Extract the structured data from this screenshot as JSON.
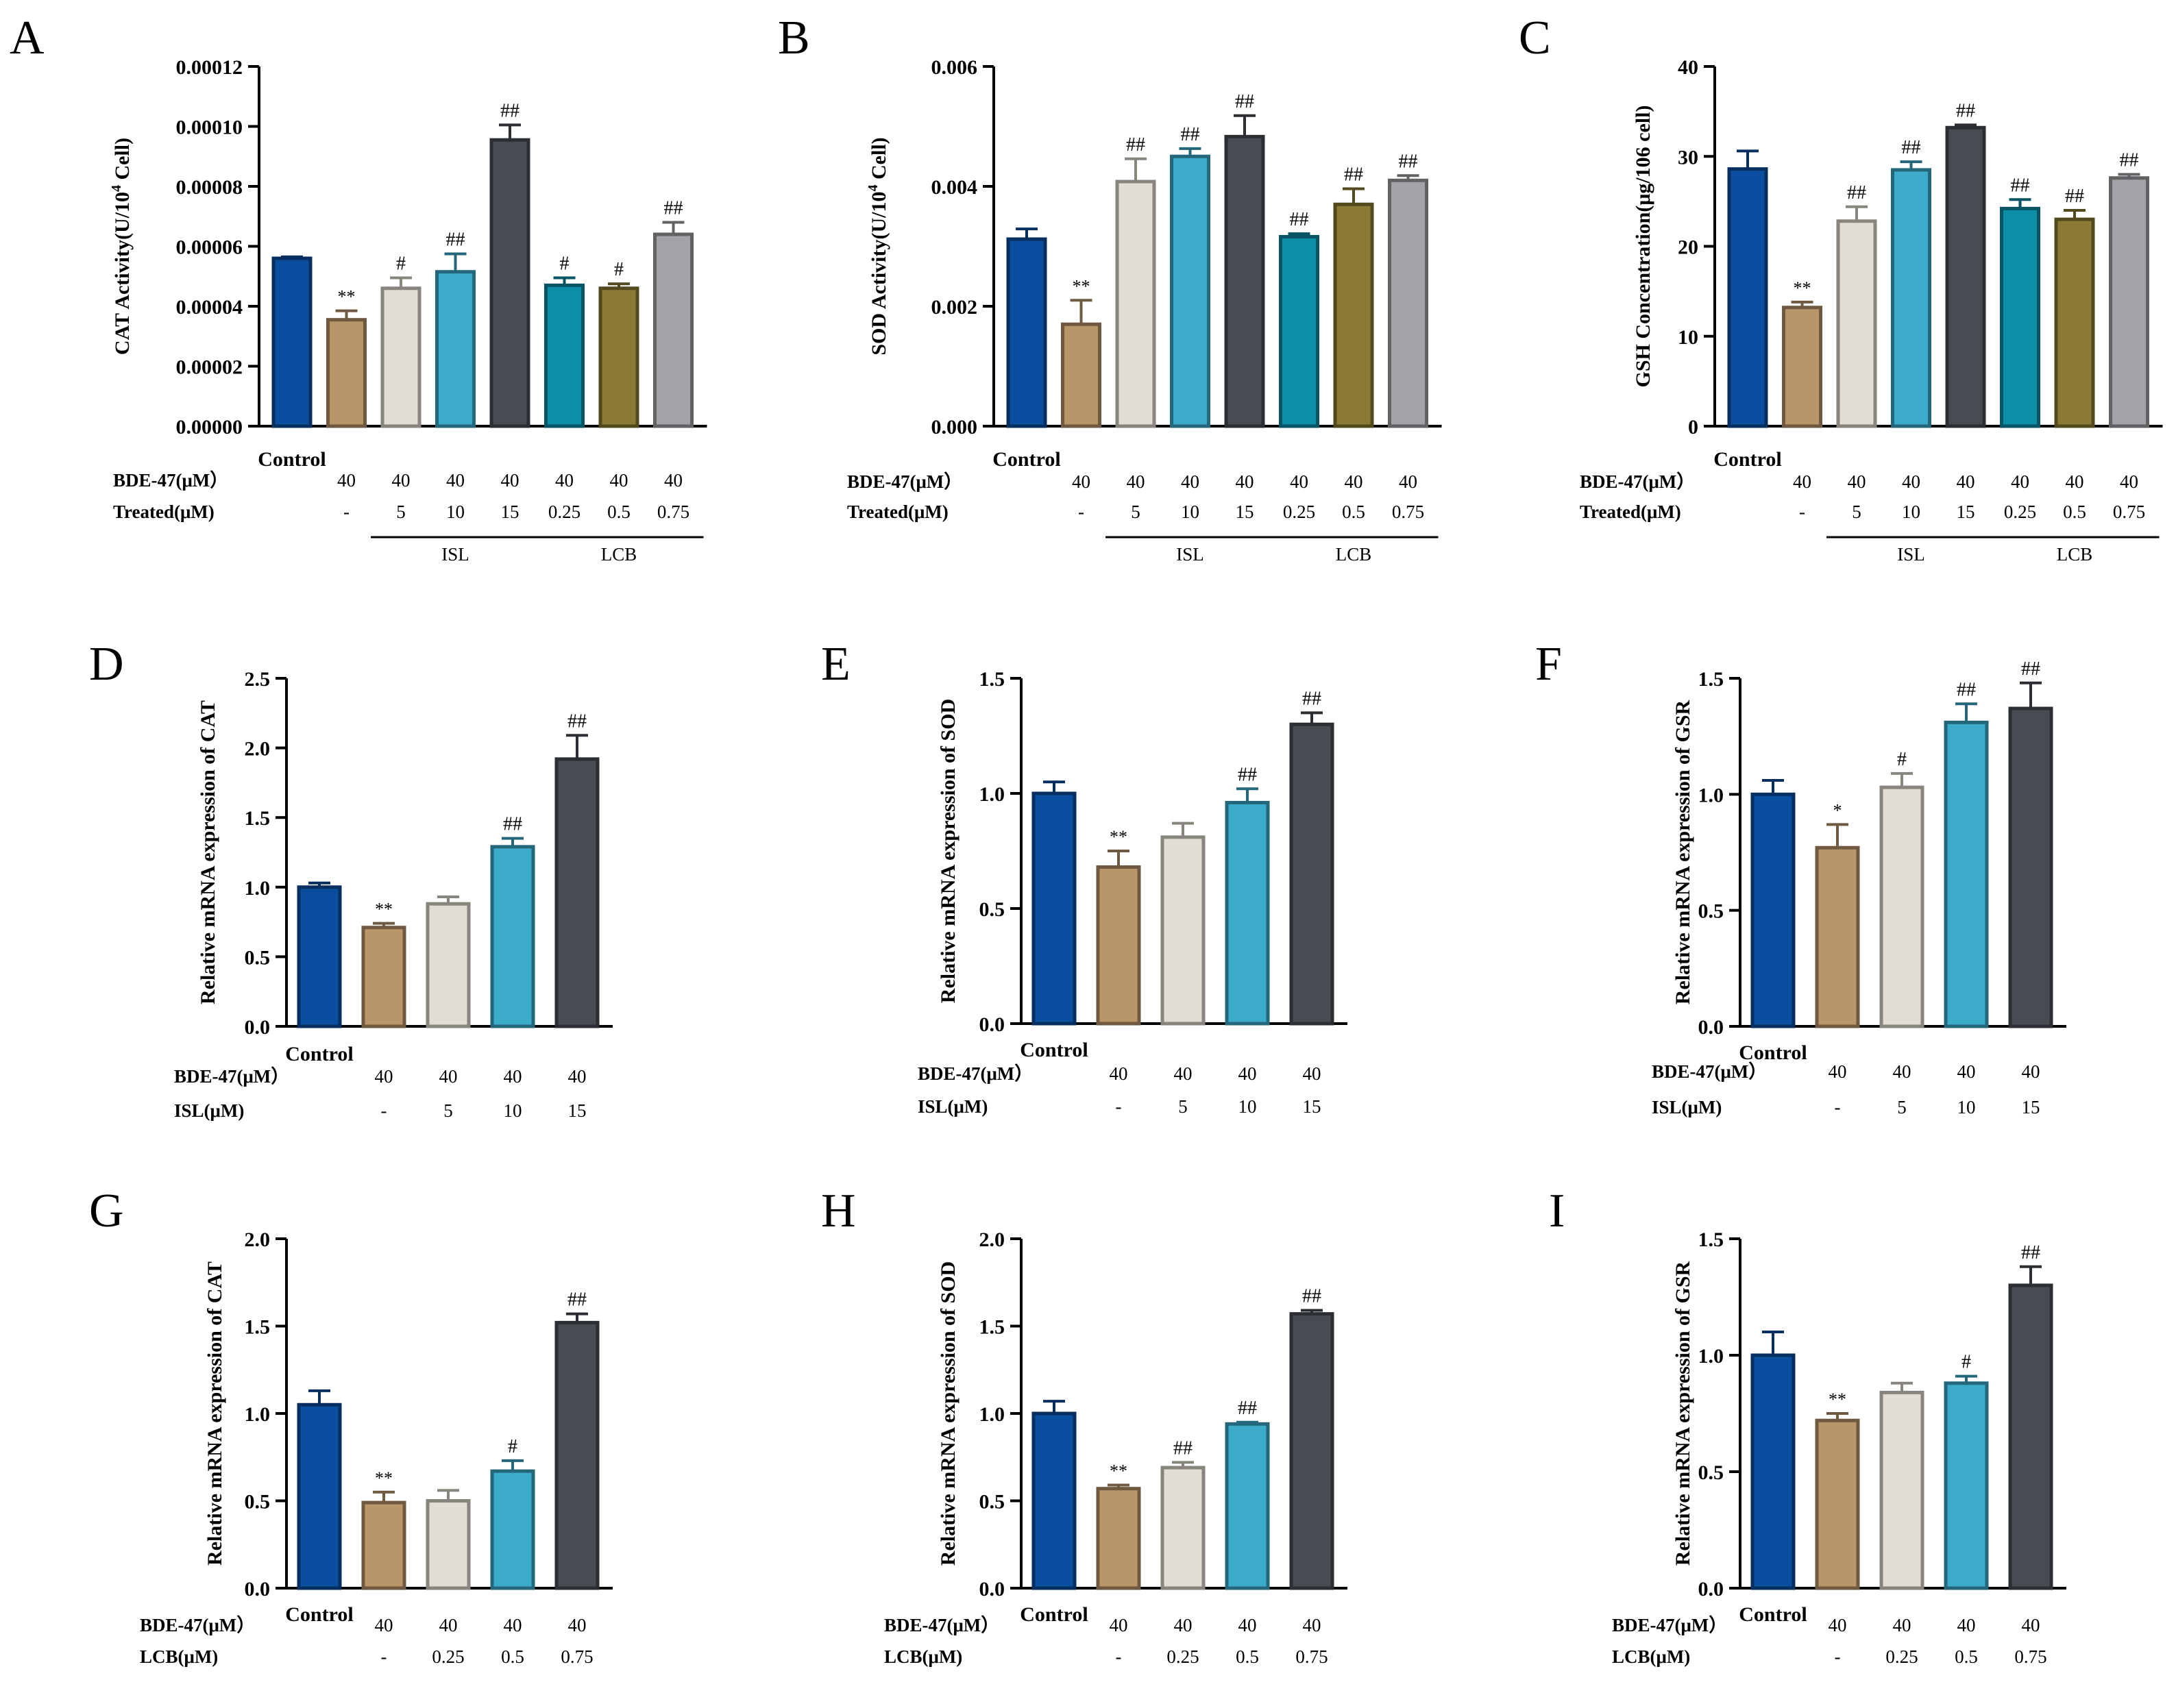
{
  "figure": {
    "colors": {
      "control": "#0a4f9f",
      "bde": "#b9956a",
      "isl_low": "#e2ddd3",
      "isl_mid": "#3daccb",
      "isl_high": "#474c53",
      "lcb_low": "#0b8ea6",
      "lcb_mid": "#8b7a34",
      "lcb_high": "#a3a3a8"
    }
  },
  "chart_data": [
    {
      "panel": "A",
      "type": "bar",
      "ylabel": "CAT Activity(U/10^4 Cell)",
      "ylabel_main": "CAT Activity(U/10",
      "ylabel_sup": "4",
      "ylabel_tail": " Cell)",
      "ylim": [
        0,
        0.00012
      ],
      "yticks": [
        0.0,
        2e-05,
        4e-05,
        6e-05,
        8e-05,
        0.0001,
        0.00012
      ],
      "ytick_labels": [
        "0.00000",
        "0.00002",
        "0.00004",
        "0.00006",
        "0.00008",
        "0.00010",
        "0.00012"
      ],
      "control_label": "Control",
      "row1_label": "BDE-47(μM）",
      "row2_label": "Treated(μM)",
      "row1": [
        "",
        "40",
        "40",
        "40",
        "40",
        "40",
        "40",
        "40"
      ],
      "row2": [
        "",
        "-",
        "5",
        "10",
        "15",
        "0.25",
        "0.5",
        "0.75"
      ],
      "groups": [
        {
          "label": "ISL",
          "from": 2,
          "to": 4
        },
        {
          "label": "LCB",
          "from": 5,
          "to": 7
        }
      ],
      "values": [
        5.6e-05,
        3.55e-05,
        4.6e-05,
        5.15e-05,
        9.55e-05,
        4.7e-05,
        4.6e-05,
        6.4e-05
      ],
      "errors": [
        5e-07,
        3e-06,
        3.5e-06,
        6e-06,
        5e-06,
        2.5e-06,
        1.5e-06,
        4e-06
      ],
      "sig": [
        "",
        "**",
        "#",
        "##",
        "##",
        "#",
        "#",
        "##"
      ],
      "colors": [
        "control",
        "bde",
        "isl_low",
        "isl_mid",
        "isl_high",
        "lcb_low",
        "lcb_mid",
        "lcb_high"
      ]
    },
    {
      "panel": "B",
      "type": "bar",
      "ylabel": "SOD Activity(U/10^4 Cell)",
      "ylabel_main": "SOD Activity(U/10",
      "ylabel_sup": "4",
      "ylabel_tail": " Cell)",
      "ylim": [
        0,
        0.006
      ],
      "yticks": [
        0,
        0.002,
        0.004,
        0.006
      ],
      "ytick_labels": [
        "0.000",
        "0.002",
        "0.004",
        "0.006"
      ],
      "control_label": "Control",
      "row1_label": "BDE-47(μM）",
      "row2_label": "Treated(μM)",
      "row1": [
        "",
        "40",
        "40",
        "40",
        "40",
        "40",
        "40",
        "40"
      ],
      "row2": [
        "",
        "-",
        "5",
        "10",
        "15",
        "0.25",
        "0.5",
        "0.75"
      ],
      "groups": [
        {
          "label": "ISL",
          "from": 2,
          "to": 4
        },
        {
          "label": "LCB",
          "from": 5,
          "to": 7
        }
      ],
      "values": [
        0.00312,
        0.0017,
        0.00408,
        0.0045,
        0.00483,
        0.00316,
        0.0037,
        0.0041
      ],
      "errors": [
        0.00017,
        0.0004,
        0.00038,
        0.00013,
        0.00035,
        5e-05,
        0.00026,
        8e-05
      ],
      "sig": [
        "",
        "**",
        "##",
        "##",
        "##",
        "##",
        "##",
        "##"
      ],
      "colors": [
        "control",
        "bde",
        "isl_low",
        "isl_mid",
        "isl_high",
        "lcb_low",
        "lcb_mid",
        "lcb_high"
      ]
    },
    {
      "panel": "C",
      "type": "bar",
      "ylabel": "GSH Concentration(μg/106 cell)",
      "ylabel_main": "GSH Concentration(μg/106 cell)",
      "ylabel_sup": "",
      "ylabel_tail": "",
      "ylim": [
        0,
        40
      ],
      "yticks": [
        0,
        10,
        20,
        30,
        40
      ],
      "ytick_labels": [
        "0",
        "10",
        "20",
        "30",
        "40"
      ],
      "control_label": "Control",
      "row1_label": "BDE-47(μM）",
      "row2_label": "Treated(μM)",
      "row1": [
        "",
        "40",
        "40",
        "40",
        "40",
        "40",
        "40",
        "40"
      ],
      "row2": [
        "",
        "-",
        "5",
        "10",
        "15",
        "0.25",
        "0.5",
        "0.75"
      ],
      "groups": [
        {
          "label": "ISL",
          "from": 2,
          "to": 4
        },
        {
          "label": "LCB",
          "from": 5,
          "to": 7
        }
      ],
      "values": [
        28.6,
        13.2,
        22.8,
        28.5,
        33.2,
        24.2,
        23.0,
        27.6
      ],
      "errors": [
        2.0,
        0.6,
        1.6,
        0.9,
        0.3,
        1.0,
        1.0,
        0.4
      ],
      "sig": [
        "",
        "**",
        "##",
        "##",
        "##",
        "##",
        "##",
        "##"
      ],
      "colors": [
        "control",
        "bde",
        "isl_low",
        "isl_mid",
        "isl_high",
        "lcb_low",
        "lcb_mid",
        "lcb_high"
      ]
    },
    {
      "panel": "D",
      "type": "bar",
      "ylabel": "Relative mRNA expression of CAT",
      "ylabel_main": "Relative mRNA expression of CAT",
      "ylabel_sup": "",
      "ylabel_tail": "",
      "ylim": [
        0,
        2.5
      ],
      "yticks": [
        0,
        0.5,
        1.0,
        1.5,
        2.0,
        2.5
      ],
      "ytick_labels": [
        "0.0",
        "0.5",
        "1.0",
        "1.5",
        "2.0",
        "2.5"
      ],
      "control_label": "Control",
      "row1_label": "BDE-47(μM）",
      "row2_label": "ISL(μM)",
      "row1": [
        "",
        "40",
        "40",
        "40",
        "40"
      ],
      "row2": [
        "",
        "-",
        "5",
        "10",
        "15"
      ],
      "groups": [],
      "values": [
        1.0,
        0.71,
        0.88,
        1.29,
        1.92
      ],
      "errors": [
        0.03,
        0.03,
        0.05,
        0.06,
        0.17
      ],
      "sig": [
        "",
        "**",
        "",
        "##",
        "##"
      ],
      "colors": [
        "control",
        "bde",
        "isl_low",
        "isl_mid",
        "isl_high"
      ]
    },
    {
      "panel": "E",
      "type": "bar",
      "ylabel": "Relative mRNA expression of SOD",
      "ylabel_main": "Relative mRNA expression of SOD",
      "ylabel_sup": "",
      "ylabel_tail": "",
      "ylim": [
        0,
        1.5
      ],
      "yticks": [
        0,
        0.5,
        1.0,
        1.5
      ],
      "ytick_labels": [
        "0.0",
        "0.5",
        "1.0",
        "1.5"
      ],
      "control_label": "Control",
      "row1_label": "BDE-47(μM）",
      "row2_label": "ISL(μM)",
      "row1": [
        "",
        "40",
        "40",
        "40",
        "40"
      ],
      "row2": [
        "",
        "-",
        "5",
        "10",
        "15"
      ],
      "groups": [],
      "values": [
        1.0,
        0.68,
        0.81,
        0.96,
        1.3
      ],
      "errors": [
        0.05,
        0.07,
        0.06,
        0.06,
        0.05
      ],
      "sig": [
        "",
        "**",
        "",
        "##",
        "##"
      ],
      "colors": [
        "control",
        "bde",
        "isl_low",
        "isl_mid",
        "isl_high"
      ]
    },
    {
      "panel": "F",
      "type": "bar",
      "ylabel": "Relative mRNA expression of GSR",
      "ylabel_main": "Relative mRNA expression of GSR",
      "ylabel_sup": "",
      "ylabel_tail": "",
      "ylim": [
        0,
        1.5
      ],
      "yticks": [
        0,
        0.5,
        1.0,
        1.5
      ],
      "ytick_labels": [
        "0.0",
        "0.5",
        "1.0",
        "1.5"
      ],
      "control_label": "Control",
      "row1_label": "BDE-47(μM）",
      "row2_label": "ISL(μM)",
      "row1": [
        "",
        "40",
        "40",
        "40",
        "40"
      ],
      "row2": [
        "",
        "-",
        "5",
        "10",
        "15"
      ],
      "groups": [],
      "values": [
        1.0,
        0.77,
        1.03,
        1.31,
        1.37
      ],
      "errors": [
        0.06,
        0.1,
        0.06,
        0.08,
        0.11
      ],
      "sig": [
        "",
        "*",
        "#",
        "##",
        "##"
      ],
      "colors": [
        "control",
        "bde",
        "isl_low",
        "isl_mid",
        "isl_high"
      ]
    },
    {
      "panel": "G",
      "type": "bar",
      "ylabel": "Relative mRNA expression of CAT",
      "ylabel_main": "Relative mRNA expression of CAT",
      "ylabel_sup": "",
      "ylabel_tail": "",
      "ylim": [
        0,
        2.0
      ],
      "yticks": [
        0,
        0.5,
        1.0,
        1.5,
        2.0
      ],
      "ytick_labels": [
        "0.0",
        "0.5",
        "1.0",
        "1.5",
        "2.0"
      ],
      "control_label": "Control",
      "row1_label": "BDE-47(μM）",
      "row2_label": "LCB(μM)",
      "row1": [
        "",
        "40",
        "40",
        "40",
        "40"
      ],
      "row2": [
        "",
        "-",
        "0.25",
        "0.5",
        "0.75"
      ],
      "groups": [],
      "values": [
        1.05,
        0.49,
        0.5,
        0.67,
        1.52
      ],
      "errors": [
        0.08,
        0.06,
        0.06,
        0.06,
        0.05
      ],
      "sig": [
        "",
        "**",
        "",
        "#",
        "##"
      ],
      "colors": [
        "control",
        "bde",
        "isl_low",
        "isl_mid",
        "isl_high"
      ]
    },
    {
      "panel": "H",
      "type": "bar",
      "ylabel": "Relative mRNA expression of SOD",
      "ylabel_main": "Relative mRNA expression of SOD",
      "ylabel_sup": "",
      "ylabel_tail": "",
      "ylim": [
        0,
        2.0
      ],
      "yticks": [
        0,
        0.5,
        1.0,
        1.5,
        2.0
      ],
      "ytick_labels": [
        "0.0",
        "0.5",
        "1.0",
        "1.5",
        "2.0"
      ],
      "control_label": "Control",
      "row1_label": "BDE-47(μM）",
      "row2_label": "LCB(μM)",
      "row1": [
        "",
        "40",
        "40",
        "40",
        "40"
      ],
      "row2": [
        "",
        "-",
        "0.25",
        "0.5",
        "0.75"
      ],
      "groups": [],
      "values": [
        1.0,
        0.57,
        0.69,
        0.94,
        1.57
      ],
      "errors": [
        0.07,
        0.02,
        0.03,
        0.01,
        0.02
      ],
      "sig": [
        "",
        "**",
        "##",
        "##",
        "##"
      ],
      "colors": [
        "control",
        "bde",
        "isl_low",
        "isl_mid",
        "isl_high"
      ]
    },
    {
      "panel": "I",
      "type": "bar",
      "ylabel": "Relative mRNA expression of GSR",
      "ylabel_main": "Relative mRNA expression of GSR",
      "ylabel_sup": "",
      "ylabel_tail": "",
      "ylim": [
        0,
        1.5
      ],
      "yticks": [
        0,
        0.5,
        1.0,
        1.5
      ],
      "ytick_labels": [
        "0.0",
        "0.5",
        "1.0",
        "1.5"
      ],
      "control_label": "Control",
      "row1_label": "BDE-47(μM）",
      "row2_label": "LCB(μM)",
      "row1": [
        "",
        "40",
        "40",
        "40",
        "40"
      ],
      "row2": [
        "",
        "-",
        "0.25",
        "0.5",
        "0.75"
      ],
      "groups": [],
      "values": [
        1.0,
        0.72,
        0.84,
        0.88,
        1.3
      ],
      "errors": [
        0.1,
        0.03,
        0.04,
        0.03,
        0.08
      ],
      "sig": [
        "",
        "**",
        "",
        "#",
        "##"
      ],
      "colors": [
        "control",
        "bde",
        "isl_low",
        "isl_mid",
        "isl_high"
      ]
    }
  ]
}
